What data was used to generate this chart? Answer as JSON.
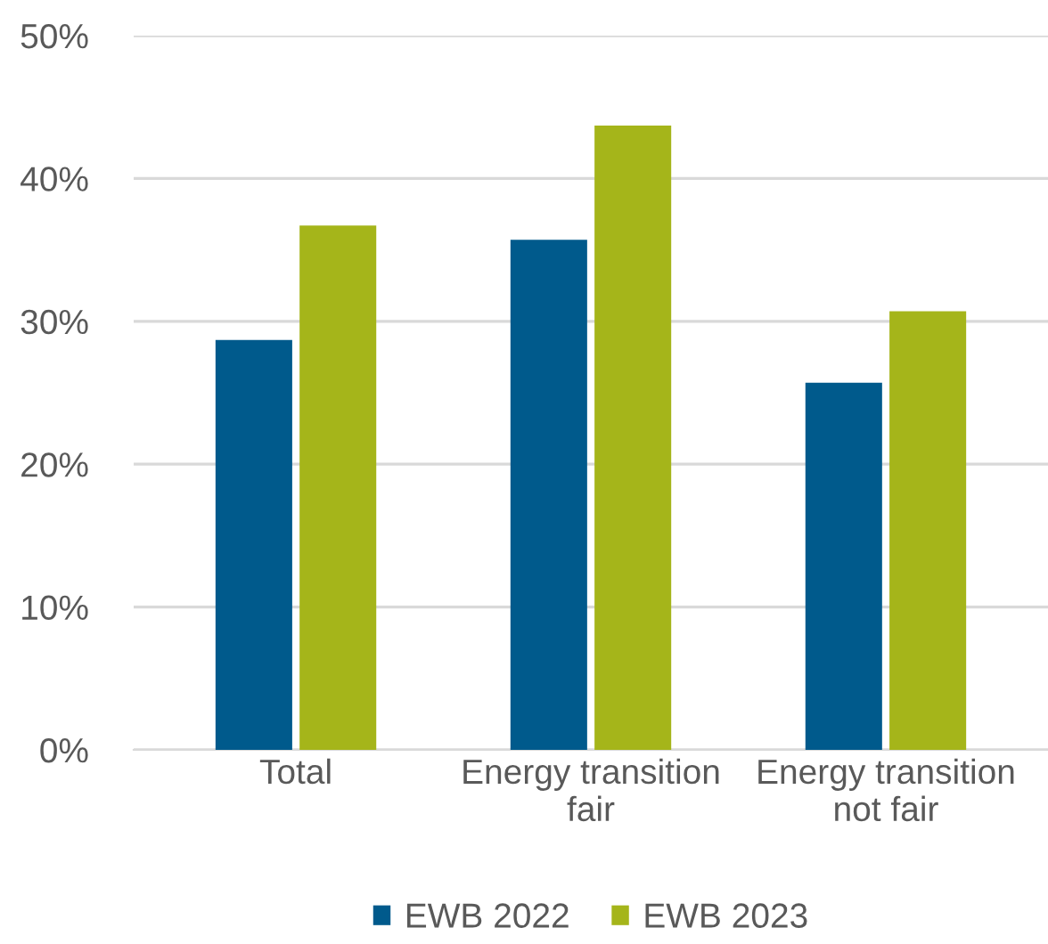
{
  "chart_data": {
    "type": "bar",
    "categories": [
      "Total",
      "Energy transition\nfair",
      "Energy transition\nnot fair"
    ],
    "series": [
      {
        "name": "EWB 2022",
        "color": "#005a8c",
        "values": [
          28.7,
          35.7,
          25.7
        ]
      },
      {
        "name": "EWB 2023",
        "color": "#a5b51a",
        "values": [
          36.7,
          43.7,
          30.7
        ]
      }
    ],
    "ylim": [
      0,
      50
    ],
    "yticks": [
      {
        "value": 0,
        "label": "0%"
      },
      {
        "value": 10,
        "label": "10%"
      },
      {
        "value": 20,
        "label": "20%"
      },
      {
        "value": 30,
        "label": "30%"
      },
      {
        "value": 40,
        "label": "40%"
      },
      {
        "value": 50,
        "label": "50%"
      }
    ],
    "grid": "y",
    "legend": "bottom"
  }
}
